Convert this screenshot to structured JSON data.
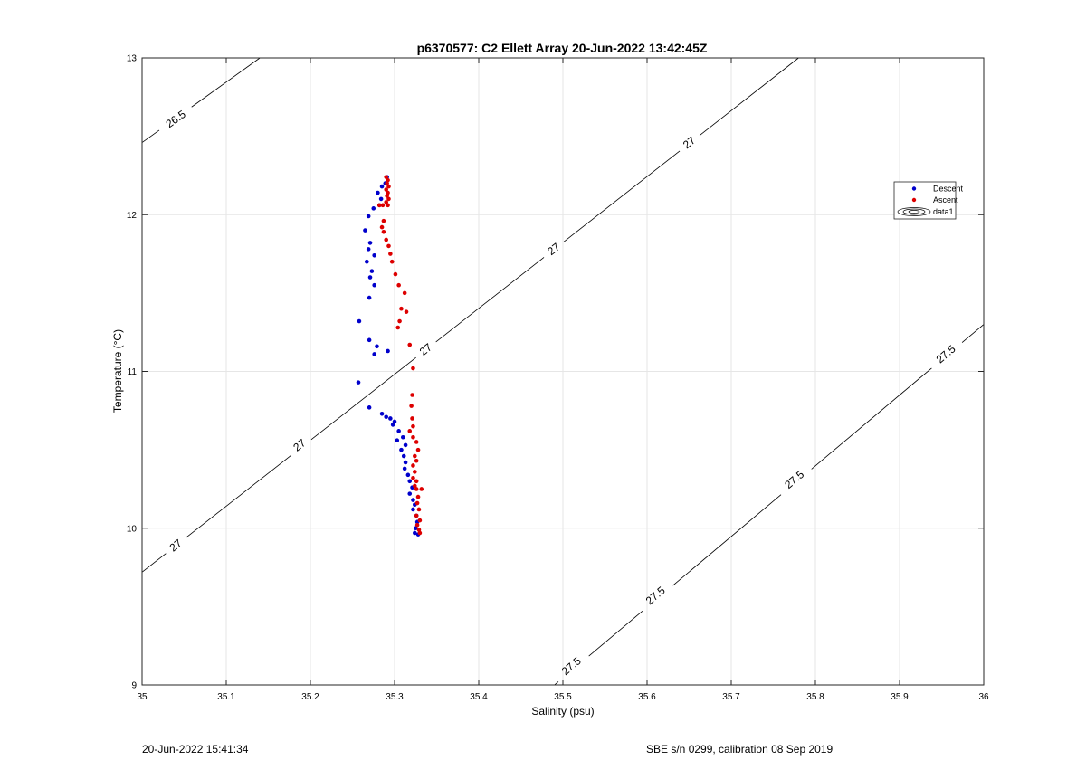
{
  "chart_data": {
    "type": "scatter",
    "title": "p6370577: C2 Ellett Array 20-Jun-2022 13:42:45Z",
    "xlabel": "Salinity (psu)",
    "ylabel": "Temperature (°C)",
    "xlim": [
      35,
      36
    ],
    "ylim": [
      9,
      13
    ],
    "x_ticks": [
      "35",
      "35.1",
      "35.2",
      "35.3",
      "35.4",
      "35.5",
      "35.6",
      "35.7",
      "35.8",
      "35.9",
      "36"
    ],
    "y_ticks": [
      "9",
      "10",
      "11",
      "12",
      "13"
    ],
    "grid": true,
    "legend_position": "right",
    "colors": {
      "descent": "#0000cc",
      "ascent": "#dd0000",
      "contour": "#000000",
      "grid": "#e6e6e6"
    },
    "series": [
      {
        "name": "Descent",
        "marker": "dot",
        "points": [
          [
            35.291,
            12.24
          ],
          [
            35.289,
            12.2
          ],
          [
            35.285,
            12.18
          ],
          [
            35.28,
            12.14
          ],
          [
            35.284,
            12.1
          ],
          [
            35.282,
            12.06
          ],
          [
            35.275,
            12.04
          ],
          [
            35.269,
            11.99
          ],
          [
            35.265,
            11.9
          ],
          [
            35.271,
            11.82
          ],
          [
            35.269,
            11.78
          ],
          [
            35.276,
            11.74
          ],
          [
            35.267,
            11.7
          ],
          [
            35.273,
            11.64
          ],
          [
            35.271,
            11.6
          ],
          [
            35.276,
            11.55
          ],
          [
            35.27,
            11.47
          ],
          [
            35.258,
            11.32
          ],
          [
            35.27,
            11.2
          ],
          [
            35.279,
            11.16
          ],
          [
            35.276,
            11.11
          ],
          [
            35.292,
            11.13
          ],
          [
            35.257,
            10.93
          ],
          [
            35.27,
            10.77
          ],
          [
            35.285,
            10.73
          ],
          [
            35.29,
            10.71
          ],
          [
            35.295,
            10.7
          ],
          [
            35.3,
            10.68
          ],
          [
            35.298,
            10.66
          ],
          [
            35.305,
            10.62
          ],
          [
            35.31,
            10.58
          ],
          [
            35.303,
            10.56
          ],
          [
            35.313,
            10.53
          ],
          [
            35.308,
            10.5
          ],
          [
            35.311,
            10.46
          ],
          [
            35.313,
            10.42
          ],
          [
            35.312,
            10.38
          ],
          [
            35.316,
            10.34
          ],
          [
            35.318,
            10.3
          ],
          [
            35.321,
            10.26
          ],
          [
            35.318,
            10.22
          ],
          [
            35.322,
            10.18
          ],
          [
            35.324,
            10.15
          ],
          [
            35.322,
            10.12
          ],
          [
            35.326,
            10.08
          ],
          [
            35.327,
            10.04
          ],
          [
            35.325,
            10.0
          ],
          [
            35.324,
            9.97
          ],
          [
            35.328,
            9.96
          ]
        ]
      },
      {
        "name": "Ascent",
        "marker": "dot",
        "points": [
          [
            35.29,
            12.24
          ],
          [
            35.292,
            12.22
          ],
          [
            35.291,
            12.2
          ],
          [
            35.293,
            12.18
          ],
          [
            35.29,
            12.16
          ],
          [
            35.292,
            12.14
          ],
          [
            35.291,
            12.12
          ],
          [
            35.293,
            12.1
          ],
          [
            35.29,
            12.08
          ],
          [
            35.292,
            12.06
          ],
          [
            35.286,
            12.06
          ],
          [
            35.282,
            12.06
          ],
          [
            35.287,
            11.96
          ],
          [
            35.285,
            11.92
          ],
          [
            35.287,
            11.89
          ],
          [
            35.29,
            11.84
          ],
          [
            35.293,
            11.8
          ],
          [
            35.295,
            11.75
          ],
          [
            35.297,
            11.7
          ],
          [
            35.301,
            11.62
          ],
          [
            35.305,
            11.55
          ],
          [
            35.312,
            11.5
          ],
          [
            35.308,
            11.4
          ],
          [
            35.314,
            11.38
          ],
          [
            35.306,
            11.32
          ],
          [
            35.304,
            11.28
          ],
          [
            35.318,
            11.17
          ],
          [
            35.322,
            11.02
          ],
          [
            35.321,
            10.85
          ],
          [
            35.32,
            10.78
          ],
          [
            35.321,
            10.7
          ],
          [
            35.322,
            10.65
          ],
          [
            35.318,
            10.62
          ],
          [
            35.322,
            10.58
          ],
          [
            35.326,
            10.55
          ],
          [
            35.328,
            10.5
          ],
          [
            35.324,
            10.46
          ],
          [
            35.326,
            10.43
          ],
          [
            35.322,
            10.4
          ],
          [
            35.324,
            10.36
          ],
          [
            35.322,
            10.32
          ],
          [
            35.326,
            10.3
          ],
          [
            35.324,
            10.27
          ],
          [
            35.326,
            10.25
          ],
          [
            35.332,
            10.25
          ],
          [
            35.328,
            10.2
          ],
          [
            35.327,
            10.16
          ],
          [
            35.329,
            10.12
          ],
          [
            35.326,
            10.08
          ],
          [
            35.33,
            10.05
          ],
          [
            35.327,
            10.02
          ],
          [
            35.329,
            9.99
          ],
          [
            35.33,
            9.97
          ]
        ]
      }
    ],
    "legend": [
      "Descent",
      "Ascent",
      "data1"
    ],
    "contours": [
      {
        "level": "26.5",
        "line": [
          [
            35.0,
            12.46
          ],
          [
            35.14,
            13.0
          ]
        ],
        "labels": [
          {
            "x": 35.04,
            "y": 12.61
          }
        ]
      },
      {
        "level": "27",
        "line": [
          [
            35.0,
            9.72
          ],
          [
            35.78,
            13.0
          ]
        ],
        "labels": [
          {
            "x": 35.04,
            "y": 9.89
          },
          {
            "x": 35.187,
            "y": 10.53
          },
          {
            "x": 35.337,
            "y": 11.14
          },
          {
            "x": 35.489,
            "y": 11.78
          },
          {
            "x": 35.65,
            "y": 12.46
          }
        ]
      },
      {
        "level": "27.5",
        "line": [
          [
            35.49,
            9.0
          ],
          [
            36.0,
            11.3
          ]
        ],
        "labels": [
          {
            "x": 35.51,
            "y": 9.12
          },
          {
            "x": 35.61,
            "y": 9.57
          },
          {
            "x": 35.775,
            "y": 10.31
          },
          {
            "x": 35.955,
            "y": 11.11
          }
        ]
      }
    ]
  },
  "footer": {
    "left": "20-Jun-2022 15:41:34",
    "right": "SBE s/n 0299, calibration 08 Sep 2019"
  }
}
